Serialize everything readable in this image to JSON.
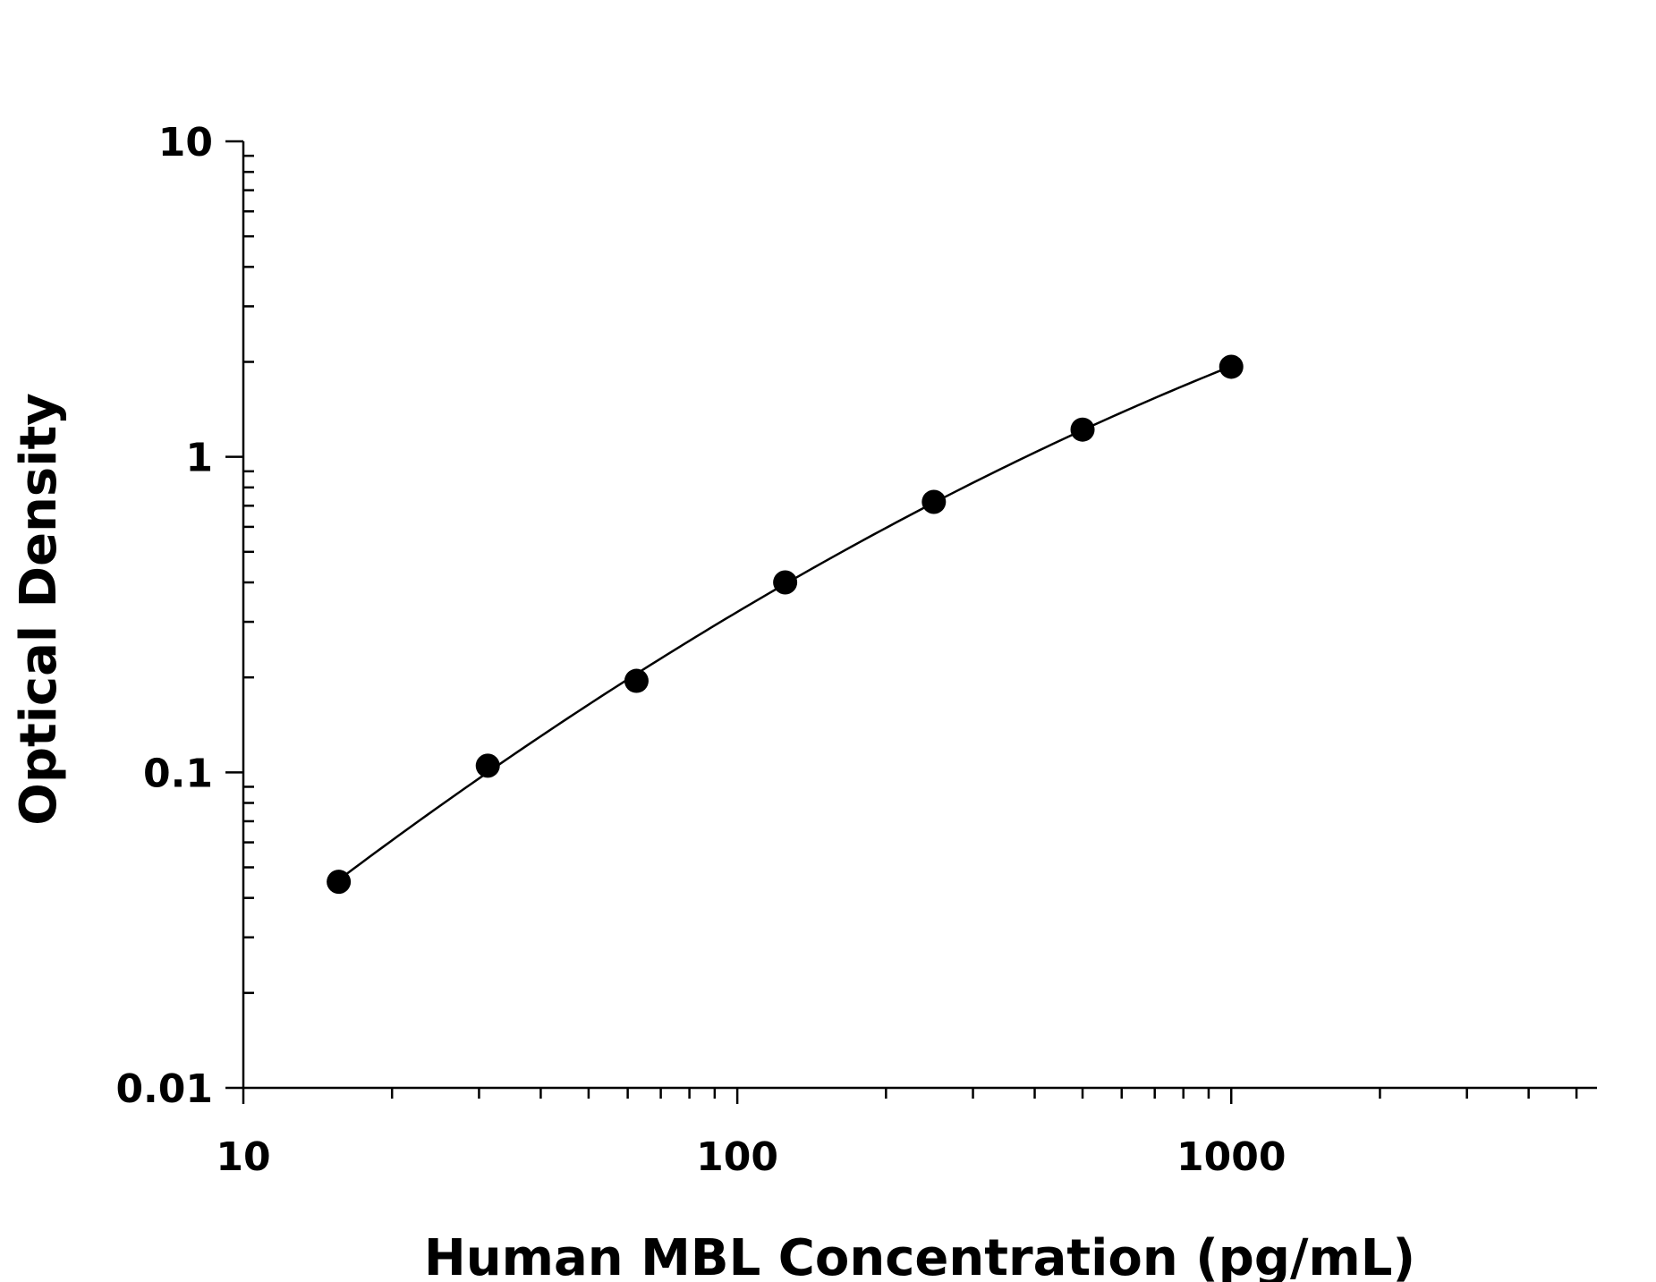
{
  "chart_data": {
    "type": "scatter",
    "title": "",
    "xlabel": "Human MBL Concentration (pg/mL)",
    "ylabel": "Optical Density",
    "xscale": "log",
    "yscale": "log",
    "xlim": [
      10,
      5500
    ],
    "ylim": [
      0.01,
      10
    ],
    "grid": false,
    "legend": "none",
    "x_ticks": [
      10,
      100,
      1000
    ],
    "x_tick_labels": [
      "10",
      "100",
      "1000"
    ],
    "y_ticks": [
      0.01,
      0.1,
      1,
      10
    ],
    "y_tick_labels": [
      "0.01",
      "0.1",
      "1",
      "10"
    ],
    "series": [
      {
        "x": [
          15.6,
          31.25,
          62.5,
          125,
          250,
          500,
          1000
        ],
        "y": [
          0.045,
          0.105,
          0.195,
          0.4,
          0.72,
          1.22,
          1.93
        ],
        "marker": "filled-circle",
        "fit_curve": true,
        "color": "#000000"
      }
    ]
  }
}
